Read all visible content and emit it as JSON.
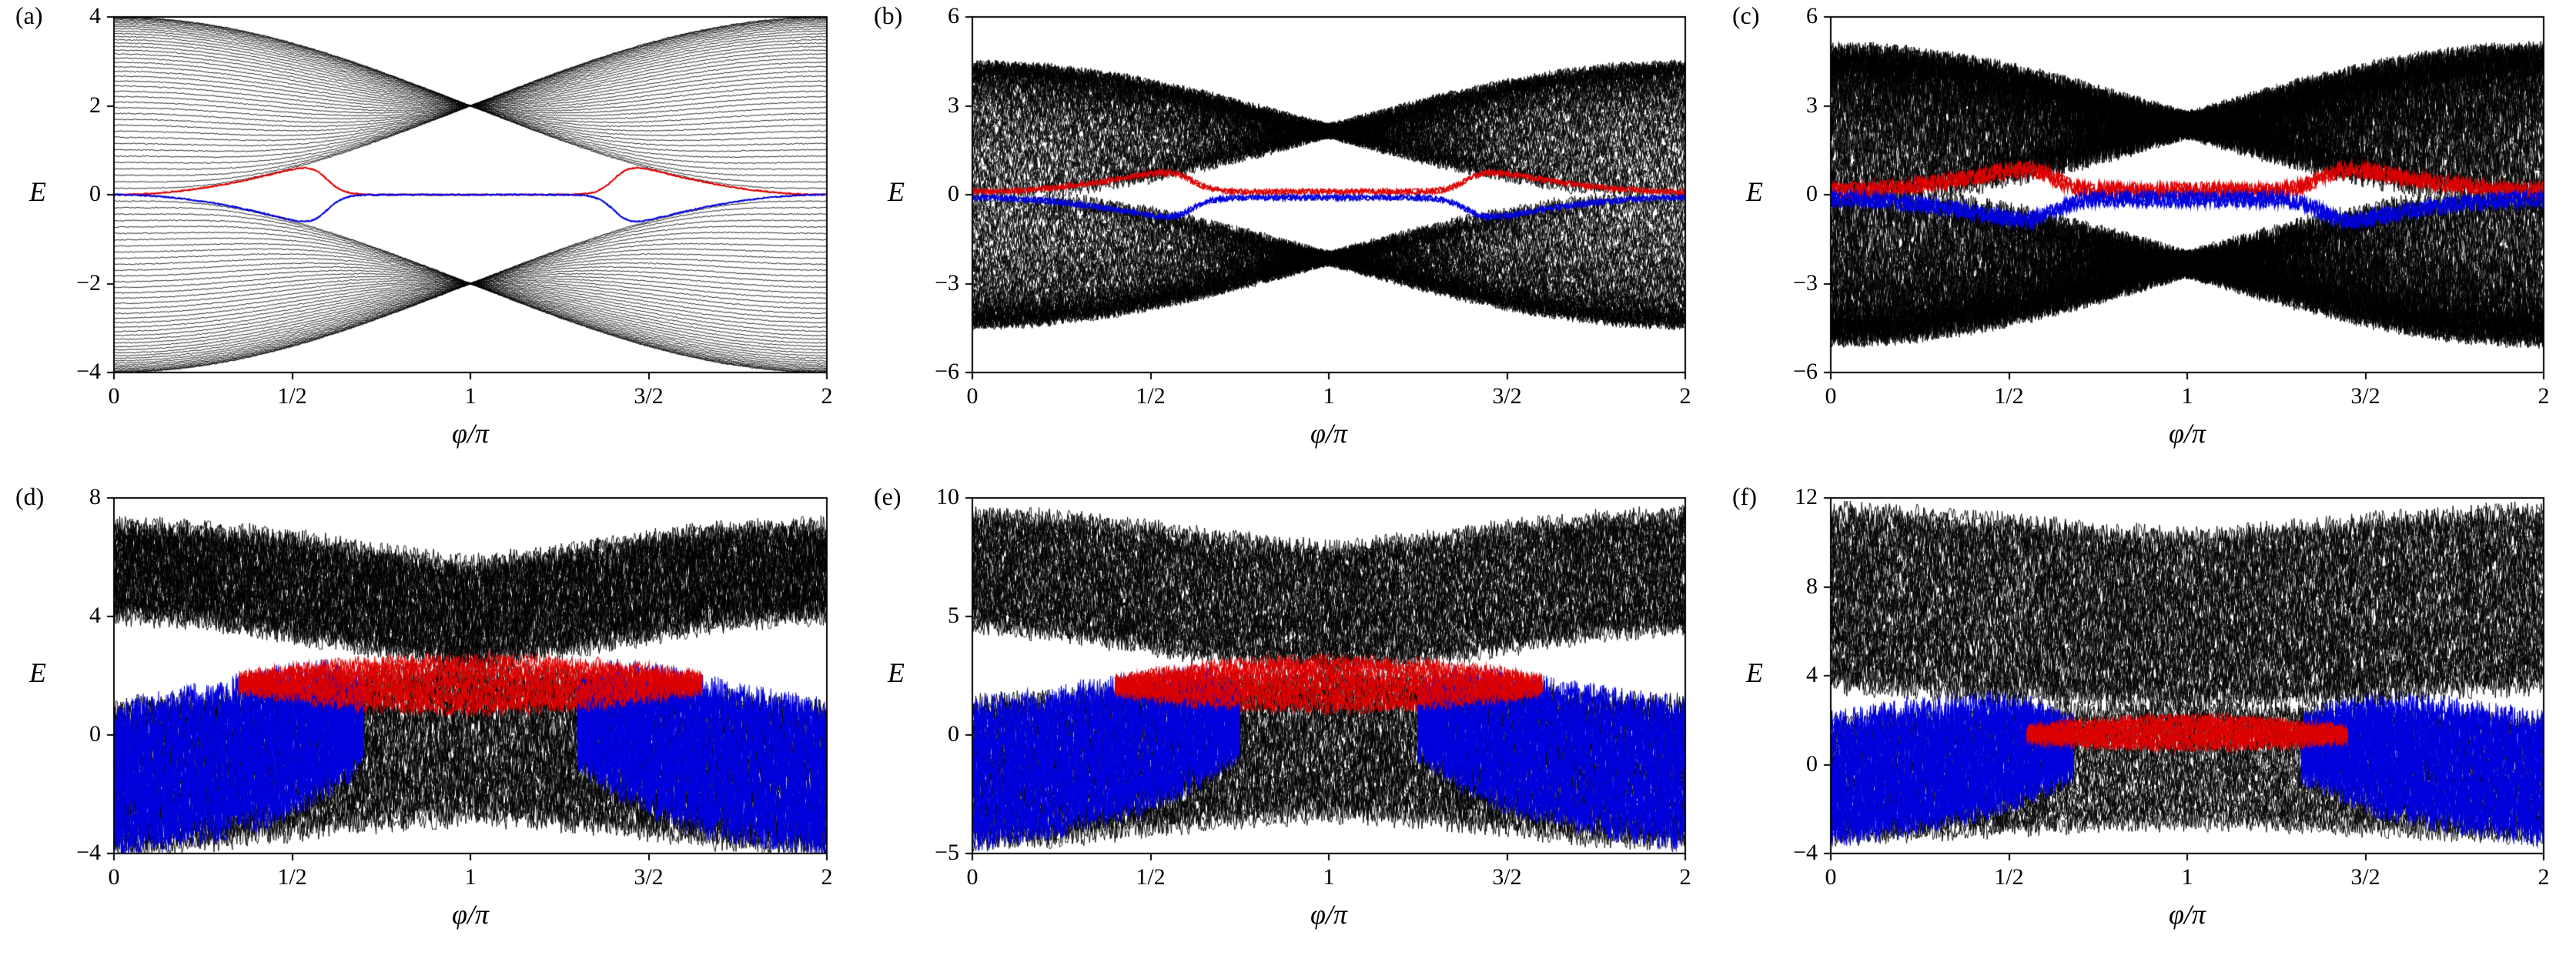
{
  "figure_description": "Six-panel energy spectrum figure: eigenenergies E versus flux phi/pi with black bulk bands and red/blue in-gap edge modes; disorder increases from (a) to (f).",
  "colors": {
    "bulk": "#000000",
    "edge_upper": "#dd0000",
    "edge_lower": "#0000dd",
    "frame": "#000000",
    "background": "#ffffff"
  },
  "chart_data": [
    {
      "type": "line",
      "label": "(a)",
      "xlabel": "φ/π",
      "ylabel": "E",
      "xlim": [
        0,
        2
      ],
      "ylim": [
        -4,
        4
      ],
      "xticks": [
        {
          "v": 0,
          "t": "0"
        },
        {
          "v": 0.5,
          "t": "1/2"
        },
        {
          "v": 1,
          "t": "1"
        },
        {
          "v": 1.5,
          "t": "3/2"
        },
        {
          "v": 2,
          "t": "2"
        }
      ],
      "yticks": [
        {
          "v": -4,
          "t": "−4"
        },
        {
          "v": -2,
          "t": "−2"
        },
        {
          "v": 0,
          "t": "0"
        },
        {
          "v": 2,
          "t": "2"
        },
        {
          "v": 4,
          "t": "4"
        }
      ],
      "series": [
        {
          "kind": "ssh",
          "w": 2.0,
          "lines": 42,
          "noise": 0.012,
          "seed": 11,
          "color": "#000000",
          "lw": 0.9
        },
        {
          "kind": "ssh_edge",
          "w": 2.0,
          "sign": 1,
          "t0": 0.8,
          "tw": 0.06,
          "jitter": 0.015,
          "off": 0,
          "passes": 2,
          "seed": 12,
          "color": "#dd0000",
          "lw": 1.6
        },
        {
          "kind": "ssh_edge",
          "w": 2.0,
          "sign": -1,
          "t0": 0.8,
          "tw": 0.06,
          "jitter": 0.015,
          "off": 0,
          "passes": 2,
          "seed": 13,
          "color": "#0000dd",
          "lw": 1.6
        }
      ]
    },
    {
      "type": "line",
      "label": "(b)",
      "xlabel": "φ/π",
      "ylabel": "E",
      "xlim": [
        0,
        2
      ],
      "ylim": [
        -6,
        6
      ],
      "xticks": [
        {
          "v": 0,
          "t": "0"
        },
        {
          "v": 0.5,
          "t": "1/2"
        },
        {
          "v": 1,
          "t": "1"
        },
        {
          "v": 1.5,
          "t": "3/2"
        },
        {
          "v": 2,
          "t": "2"
        }
      ],
      "yticks": [
        {
          "v": -6,
          "t": "−6"
        },
        {
          "v": -3,
          "t": "−3"
        },
        {
          "v": 0,
          "t": "0"
        },
        {
          "v": 3,
          "t": "3"
        },
        {
          "v": 6,
          "t": "6"
        }
      ],
      "series": [
        {
          "kind": "ssh",
          "w": 2.15,
          "lines": 55,
          "noise": 0.28,
          "seed": 21,
          "color": "#000000",
          "lw": 0.9
        },
        {
          "kind": "ssh_edge",
          "w": 2.15,
          "sign": 1,
          "t0": 0.9,
          "tw": 0.08,
          "jitter": 0.1,
          "off": 0.1,
          "passes": 3,
          "seed": 22,
          "color": "#dd0000",
          "lw": 1.5
        },
        {
          "kind": "ssh_edge",
          "w": 2.15,
          "sign": -1,
          "t0": 0.9,
          "tw": 0.08,
          "jitter": 0.1,
          "off": 0.1,
          "passes": 3,
          "seed": 23,
          "color": "#0000dd",
          "lw": 1.5
        }
      ]
    },
    {
      "type": "line",
      "label": "(c)",
      "xlabel": "φ/π",
      "ylabel": "E",
      "xlim": [
        0,
        2
      ],
      "ylim": [
        -6,
        6
      ],
      "xticks": [
        {
          "v": 0,
          "t": "0"
        },
        {
          "v": 0.5,
          "t": "1/2"
        },
        {
          "v": 1,
          "t": "1"
        },
        {
          "v": 1.5,
          "t": "3/2"
        },
        {
          "v": 2,
          "t": "2"
        }
      ],
      "yticks": [
        {
          "v": -6,
          "t": "−6"
        },
        {
          "v": -3,
          "t": "−3"
        },
        {
          "v": 0,
          "t": "0"
        },
        {
          "v": 3,
          "t": "3"
        },
        {
          "v": 6,
          "t": "6"
        }
      ],
      "series": [
        {
          "kind": "ssh",
          "w": 2.35,
          "lines": 60,
          "noise": 0.5,
          "seed": 31,
          "color": "#000000",
          "lw": 0.9
        },
        {
          "kind": "ssh_edge",
          "w": 2.35,
          "sign": 1,
          "t0": 1.0,
          "tw": 0.1,
          "jitter": 0.28,
          "off": 0.15,
          "passes": 4,
          "seed": 32,
          "color": "#dd0000",
          "lw": 1.4
        },
        {
          "kind": "ssh_edge",
          "w": 2.35,
          "sign": -1,
          "t0": 1.0,
          "tw": 0.1,
          "jitter": 0.28,
          "off": 0.15,
          "passes": 4,
          "seed": 33,
          "color": "#0000dd",
          "lw": 1.4
        }
      ]
    },
    {
      "type": "line",
      "label": "(d)",
      "xlabel": "φ/π",
      "ylabel": "E",
      "xlim": [
        0,
        2
      ],
      "ylim": [
        -4,
        8
      ],
      "xticks": [
        {
          "v": 0,
          "t": "0"
        },
        {
          "v": 0.5,
          "t": "1/2"
        },
        {
          "v": 1,
          "t": "1"
        },
        {
          "v": 1.5,
          "t": "3/2"
        },
        {
          "v": 2,
          "t": "2"
        }
      ],
      "yticks": [
        {
          "v": -4,
          "t": "−4"
        },
        {
          "v": 0,
          "t": "0"
        },
        {
          "v": 4,
          "t": "4"
        },
        {
          "v": 8,
          "t": "8"
        }
      ],
      "series": [
        {
          "kind": "band",
          "xs": [
            0,
            0.25,
            0.5,
            0.75,
            1,
            1.25,
            1.5,
            1.75,
            2
          ],
          "lo": [
            -3.8,
            -3.6,
            -3.2,
            -2.9,
            -2.7,
            -2.9,
            -3.2,
            -3.6,
            -3.8
          ],
          "hi": [
            0.9,
            1.1,
            1.5,
            2.0,
            2.3,
            2.0,
            1.5,
            1.1,
            0.9
          ],
          "lines": 40,
          "noise": 0.5,
          "seed": 41,
          "color": "#000000",
          "lw": 0.9
        },
        {
          "kind": "band",
          "xs": [
            0,
            0.15,
            0.3,
            0.45,
            0.6,
            0.7
          ],
          "lo": [
            -3.6,
            -3.4,
            -3.1,
            -2.6,
            -1.6,
            -0.6
          ],
          "hi": [
            0.7,
            1.0,
            1.4,
            1.8,
            2.0,
            1.4
          ],
          "lines": 12,
          "noise": 0.75,
          "seed": 42,
          "color": "#0000dd",
          "lw": 1.1
        },
        {
          "kind": "band",
          "xs": [
            1.3,
            1.4,
            1.55,
            1.7,
            1.85,
            2
          ],
          "lo": [
            -0.6,
            -1.6,
            -2.6,
            -3.1,
            -3.4,
            -3.6
          ],
          "hi": [
            1.4,
            2.0,
            1.8,
            1.4,
            1.0,
            0.7
          ],
          "lines": 12,
          "noise": 0.75,
          "seed": 43,
          "color": "#0000dd",
          "lw": 1.1
        },
        {
          "kind": "band",
          "xs": [
            0,
            0.25,
            0.5,
            0.75,
            1,
            1.25,
            1.5,
            1.75,
            2
          ],
          "lo": [
            4.1,
            3.9,
            3.4,
            2.9,
            2.5,
            2.9,
            3.4,
            3.9,
            4.1
          ],
          "hi": [
            7.0,
            6.9,
            6.6,
            6.1,
            5.7,
            6.1,
            6.6,
            6.9,
            7.0
          ],
          "lines": 42,
          "noise": 0.45,
          "seed": 44,
          "color": "#000000",
          "lw": 0.9
        },
        {
          "kind": "band",
          "xs": [
            0.35,
            0.5,
            0.65,
            0.8,
            1,
            1.2,
            1.35,
            1.5,
            1.65
          ],
          "lo": [
            1.6,
            1.3,
            1.05,
            0.9,
            0.8,
            0.9,
            1.05,
            1.3,
            1.6
          ],
          "hi": [
            1.9,
            2.2,
            2.4,
            2.5,
            2.6,
            2.5,
            2.4,
            2.2,
            1.9
          ],
          "lines": 10,
          "noise": 0.3,
          "seed": 45,
          "color": "#dd0000",
          "lw": 1.1
        }
      ]
    },
    {
      "type": "line",
      "label": "(e)",
      "xlabel": "φ/π",
      "ylabel": "E",
      "xlim": [
        0,
        2
      ],
      "ylim": [
        -5,
        10
      ],
      "xticks": [
        {
          "v": 0,
          "t": "0"
        },
        {
          "v": 0.5,
          "t": "1/2"
        },
        {
          "v": 1,
          "t": "1"
        },
        {
          "v": 1.5,
          "t": "3/2"
        },
        {
          "v": 2,
          "t": "2"
        }
      ],
      "yticks": [
        {
          "v": -5,
          "t": "−5"
        },
        {
          "v": 0,
          "t": "0"
        },
        {
          "v": 5,
          "t": "5"
        },
        {
          "v": 10,
          "t": "10"
        }
      ],
      "series": [
        {
          "kind": "band",
          "xs": [
            0,
            0.25,
            0.5,
            0.75,
            1,
            1.25,
            1.5,
            1.75,
            2
          ],
          "lo": [
            -4.5,
            -4.3,
            -3.9,
            -3.5,
            -3.3,
            -3.5,
            -3.9,
            -4.3,
            -4.5
          ],
          "hi": [
            1.3,
            1.5,
            1.9,
            2.3,
            2.5,
            2.3,
            1.9,
            1.5,
            1.3
          ],
          "lines": 42,
          "noise": 0.55,
          "seed": 51,
          "color": "#000000",
          "lw": 0.9
        },
        {
          "kind": "band",
          "xs": [
            0,
            0.15,
            0.3,
            0.5,
            0.65,
            0.75
          ],
          "lo": [
            -4.3,
            -4.0,
            -3.6,
            -2.8,
            -1.6,
            -0.5
          ],
          "hi": [
            1.0,
            1.3,
            1.7,
            2.1,
            2.3,
            1.6
          ],
          "lines": 12,
          "noise": 0.85,
          "seed": 52,
          "color": "#0000dd",
          "lw": 1.1
        },
        {
          "kind": "band",
          "xs": [
            1.25,
            1.35,
            1.5,
            1.7,
            1.85,
            2
          ],
          "lo": [
            -0.5,
            -1.6,
            -2.8,
            -3.6,
            -4.0,
            -4.3
          ],
          "hi": [
            1.6,
            2.3,
            2.1,
            1.7,
            1.3,
            1.0
          ],
          "lines": 12,
          "noise": 0.85,
          "seed": 53,
          "color": "#0000dd",
          "lw": 1.1
        },
        {
          "kind": "band",
          "xs": [
            0,
            0.25,
            0.5,
            0.75,
            1,
            1.25,
            1.5,
            1.75,
            2
          ],
          "lo": [
            4.6,
            4.3,
            3.7,
            3.2,
            2.9,
            3.2,
            3.7,
            4.3,
            4.6
          ],
          "hi": [
            9.3,
            9.1,
            8.7,
            8.2,
            7.8,
            8.2,
            8.7,
            9.1,
            9.3
          ],
          "lines": 44,
          "noise": 0.5,
          "seed": 54,
          "color": "#000000",
          "lw": 0.9
        },
        {
          "kind": "band",
          "xs": [
            0.4,
            0.55,
            0.7,
            0.85,
            1,
            1.15,
            1.3,
            1.45,
            1.6
          ],
          "lo": [
            1.9,
            1.5,
            1.3,
            1.15,
            1.1,
            1.15,
            1.3,
            1.5,
            1.9
          ],
          "hi": [
            2.3,
            2.7,
            3.0,
            3.15,
            3.2,
            3.15,
            3.0,
            2.7,
            2.3
          ],
          "lines": 10,
          "noise": 0.35,
          "seed": 55,
          "color": "#dd0000",
          "lw": 1.1
        }
      ]
    },
    {
      "type": "line",
      "label": "(f)",
      "xlabel": "φ/π",
      "ylabel": "E",
      "xlim": [
        0,
        2
      ],
      "ylim": [
        -4,
        12
      ],
      "xticks": [
        {
          "v": 0,
          "t": "0"
        },
        {
          "v": 0.5,
          "t": "1/2"
        },
        {
          "v": 1,
          "t": "1"
        },
        {
          "v": 1.5,
          "t": "3/2"
        },
        {
          "v": 2,
          "t": "2"
        }
      ],
      "yticks": [
        {
          "v": -4,
          "t": "−4"
        },
        {
          "v": 0,
          "t": "0"
        },
        {
          "v": 4,
          "t": "4"
        },
        {
          "v": 8,
          "t": "8"
        },
        {
          "v": 12,
          "t": "12"
        }
      ],
      "series": [
        {
          "kind": "band",
          "xs": [
            0,
            0.25,
            0.5,
            0.75,
            1,
            1.25,
            1.5,
            1.75,
            2
          ],
          "lo": [
            -3.3,
            -3.1,
            -2.9,
            -2.7,
            -2.6,
            -2.7,
            -2.9,
            -3.1,
            -3.3
          ],
          "hi": [
            1.9,
            2.1,
            2.3,
            2.5,
            2.6,
            2.5,
            2.3,
            2.1,
            1.9
          ],
          "lines": 34,
          "noise": 0.5,
          "seed": 61,
          "color": "#000000",
          "lw": 0.9
        },
        {
          "kind": "band",
          "xs": [
            0,
            0.12,
            0.28,
            0.45,
            0.58,
            0.68
          ],
          "lo": [
            -3.1,
            -2.9,
            -2.5,
            -1.9,
            -1.0,
            -0.2
          ],
          "hi": [
            1.8,
            2.1,
            2.5,
            2.8,
            2.4,
            1.6
          ],
          "lines": 12,
          "noise": 0.85,
          "seed": 62,
          "color": "#0000dd",
          "lw": 1.1
        },
        {
          "kind": "band",
          "xs": [
            1.32,
            1.42,
            1.55,
            1.72,
            1.88,
            2
          ],
          "lo": [
            -0.2,
            -1.0,
            -1.9,
            -2.5,
            -2.9,
            -3.1
          ],
          "hi": [
            1.6,
            2.4,
            2.8,
            2.5,
            2.1,
            1.8
          ],
          "lines": 12,
          "noise": 0.85,
          "seed": 63,
          "color": "#0000dd",
          "lw": 1.1
        },
        {
          "kind": "band",
          "xs": [
            0,
            0.25,
            0.5,
            0.75,
            1,
            1.25,
            1.5,
            1.75,
            2
          ],
          "lo": [
            3.6,
            3.4,
            3.1,
            2.9,
            2.8,
            2.9,
            3.1,
            3.4,
            3.6
          ],
          "hi": [
            11.4,
            11.2,
            10.9,
            10.5,
            10.2,
            10.5,
            10.9,
            11.2,
            11.4
          ],
          "lines": 50,
          "noise": 0.6,
          "seed": 64,
          "color": "#000000",
          "lw": 0.9
        },
        {
          "kind": "band",
          "xs": [
            0.55,
            0.68,
            0.8,
            0.9,
            1,
            1.1,
            1.2,
            1.32,
            1.45
          ],
          "lo": [
            1.1,
            0.95,
            0.85,
            0.8,
            0.78,
            0.8,
            0.85,
            0.95,
            1.1
          ],
          "hi": [
            1.6,
            1.85,
            2.0,
            2.1,
            2.15,
            2.1,
            2.0,
            1.85,
            1.6
          ],
          "lines": 8,
          "noise": 0.3,
          "seed": 65,
          "color": "#dd0000",
          "lw": 1.1
        }
      ]
    }
  ]
}
